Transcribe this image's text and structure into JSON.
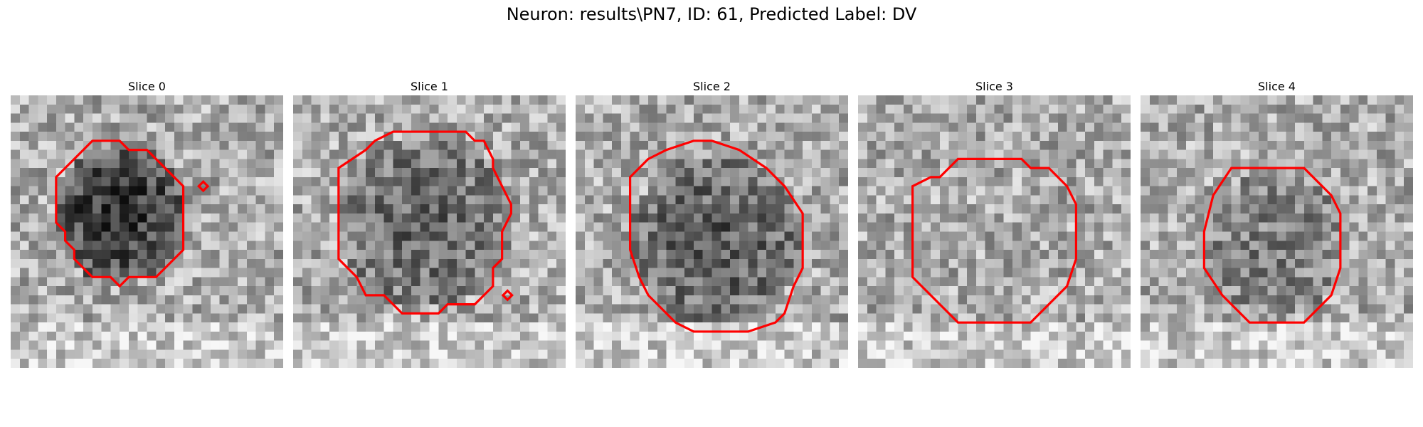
{
  "figure": {
    "suptitle": "Neuron: results\\PN7, ID: 61, Predicted Label: DV"
  },
  "contour_color": "#ff0000",
  "panels": [
    {
      "title": "Slice 0"
    },
    {
      "title": "Slice 1"
    },
    {
      "title": "Slice 2"
    },
    {
      "title": "Slice 3"
    },
    {
      "title": "Slice 4"
    }
  ]
}
